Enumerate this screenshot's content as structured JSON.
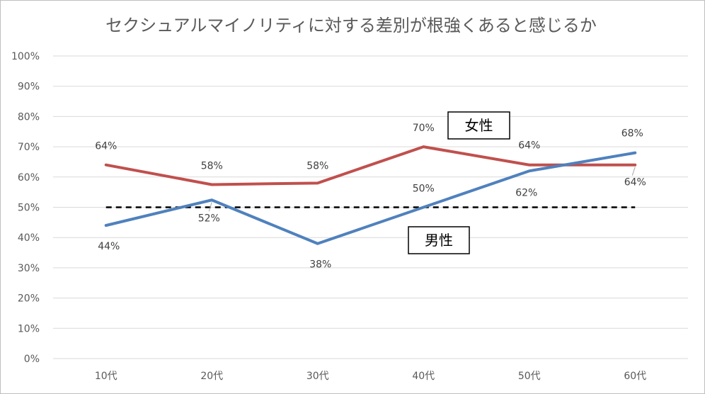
{
  "chart_data": {
    "type": "line",
    "title": "セクシュアルマイノリティに対する差別が根強くあると感じるか",
    "xlabel": "",
    "ylabel": "",
    "categories": [
      "10代",
      "20代",
      "30代",
      "40代",
      "50代",
      "60代"
    ],
    "ylim": [
      0,
      100
    ],
    "yticks": [
      "0%",
      "10%",
      "20%",
      "30%",
      "40%",
      "50%",
      "60%",
      "70%",
      "80%",
      "90%",
      "100%"
    ],
    "grid": true,
    "legend": "none",
    "series": [
      {
        "name": "女性",
        "color": "#c0504d",
        "values": [
          64,
          57.5,
          58,
          70,
          64,
          64
        ],
        "labels": [
          "64%",
          "58%",
          "58%",
          "70%",
          "64%",
          "64%"
        ]
      },
      {
        "name": "男性",
        "color": "#4f81bd",
        "values": [
          44,
          52.4,
          38,
          50,
          62,
          68
        ],
        "labels": [
          "44%",
          "52%",
          "38%",
          "50%",
          "62%",
          "68%"
        ]
      }
    ],
    "reference_line": {
      "value": 50,
      "style": "dashed",
      "color": "#000000"
    }
  }
}
